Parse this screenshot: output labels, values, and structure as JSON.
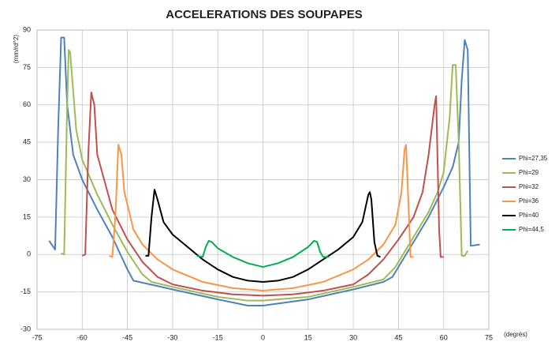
{
  "chart_data": {
    "type": "line",
    "title": "ACCELERATIONS DES SOUPAPES",
    "y_label": "(mm/rd^2)",
    "x_label": "(degrés)",
    "xlim": [
      -75,
      75
    ],
    "xticks": [
      -75,
      -60,
      -45,
      -30,
      -15,
      0,
      15,
      30,
      45,
      60,
      75
    ],
    "ylim": [
      -30,
      90
    ],
    "yticks": [
      -30,
      -15,
      0,
      15,
      30,
      45,
      60,
      75,
      90
    ],
    "grid": true,
    "legend": "right",
    "series": [
      {
        "name": "Phi=27,35",
        "color": "#4f81bd",
        "x": [
          -71,
          -69,
          -68,
          -67,
          -66,
          -65,
          -63,
          -60,
          -55,
          -50,
          -45,
          -43,
          -30,
          -15,
          -5,
          0,
          15,
          30,
          40,
          43,
          45,
          50,
          55,
          60,
          63,
          65,
          66,
          67,
          68,
          69,
          72
        ],
        "values": [
          5.5,
          2,
          50,
          87,
          87,
          60,
          40,
          30,
          18,
          7,
          -6,
          -10.5,
          -14,
          -18,
          -20.5,
          -20.5,
          -18,
          -14,
          -11,
          -9,
          -5,
          5,
          15,
          27,
          35,
          45,
          70,
          86,
          82,
          3.5,
          4
        ]
      },
      {
        "name": "Phi=29",
        "color": "#9bbb59",
        "x": [
          -67,
          -66,
          -65,
          -64.5,
          -64,
          -62,
          -60,
          -55,
          -50,
          -45,
          -40,
          -37,
          -30,
          -15,
          -5,
          0,
          15,
          30,
          40,
          44,
          50,
          55,
          58,
          60,
          62,
          63,
          64,
          65,
          66,
          67,
          68
        ],
        "values": [
          0.5,
          0,
          60,
          82,
          81,
          50,
          38,
          24,
          12,
          1,
          -8,
          -11,
          -13,
          -17,
          -18.5,
          -18.5,
          -17,
          -13,
          -10,
          -5,
          7,
          17,
          25,
          33,
          55,
          76,
          76,
          45,
          -0.5,
          -0.5,
          1.5
        ]
      },
      {
        "name": "Phi=32",
        "color": "#c0504d",
        "x": [
          -60,
          -59,
          -58,
          -57,
          -56,
          -55,
          -50,
          -45,
          -40,
          -35,
          -30,
          -20,
          -10,
          0,
          10,
          20,
          30,
          35,
          40,
          45,
          50,
          53,
          55,
          57,
          57.5,
          58.5,
          59,
          60
        ],
        "values": [
          -0.5,
          0,
          40,
          65,
          60,
          40,
          18,
          6,
          -3,
          -9,
          -12,
          -14.5,
          -16,
          -16.5,
          -16,
          -14.5,
          -12,
          -8,
          -2,
          6,
          15,
          25,
          40,
          60,
          63.5,
          10,
          -1,
          -1
        ]
      },
      {
        "name": "Phi=36",
        "color": "#f79646",
        "x": [
          -51,
          -50,
          -49,
          -48,
          -47,
          -46,
          -43,
          -40,
          -35,
          -30,
          -20,
          -10,
          0,
          10,
          20,
          30,
          35,
          40,
          44,
          46,
          47,
          47.5,
          48,
          49,
          50
        ],
        "values": [
          -0.5,
          -1,
          15,
          44,
          40,
          25,
          10,
          4,
          -2,
          -6,
          -11,
          -13.5,
          -14.5,
          -13.5,
          -11,
          -6,
          -2,
          4,
          12,
          25,
          42,
          44,
          30,
          -1,
          -1
        ]
      },
      {
        "name": "Phi=40",
        "color": "#000000",
        "x": [
          -39,
          -38,
          -37,
          -36,
          -35,
          -33,
          -30,
          -25,
          -20,
          -15,
          -10,
          -5,
          0,
          5,
          10,
          15,
          20,
          25,
          30,
          33,
          35,
          35.5,
          36,
          37,
          38,
          39
        ],
        "values": [
          -0.5,
          -0.5,
          15,
          26,
          22,
          13,
          8,
          3,
          -2,
          -6,
          -9,
          -10.5,
          -11,
          -10.5,
          -9,
          -6,
          -2,
          2,
          7,
          13,
          24,
          25,
          22,
          5,
          -0.5,
          -1
        ]
      },
      {
        "name": "Phi=44,5",
        "color": "#00b050",
        "x": [
          -22,
          -20,
          -19,
          -18,
          -17,
          -15,
          -10,
          -5,
          0,
          5,
          10,
          15,
          17,
          18,
          19,
          20,
          22
        ],
        "values": [
          -0.5,
          -1,
          3,
          5.5,
          5,
          2.5,
          -1,
          -3.5,
          -5,
          -3.5,
          -1,
          3,
          5.5,
          5,
          1,
          -1,
          -1
        ]
      }
    ]
  }
}
